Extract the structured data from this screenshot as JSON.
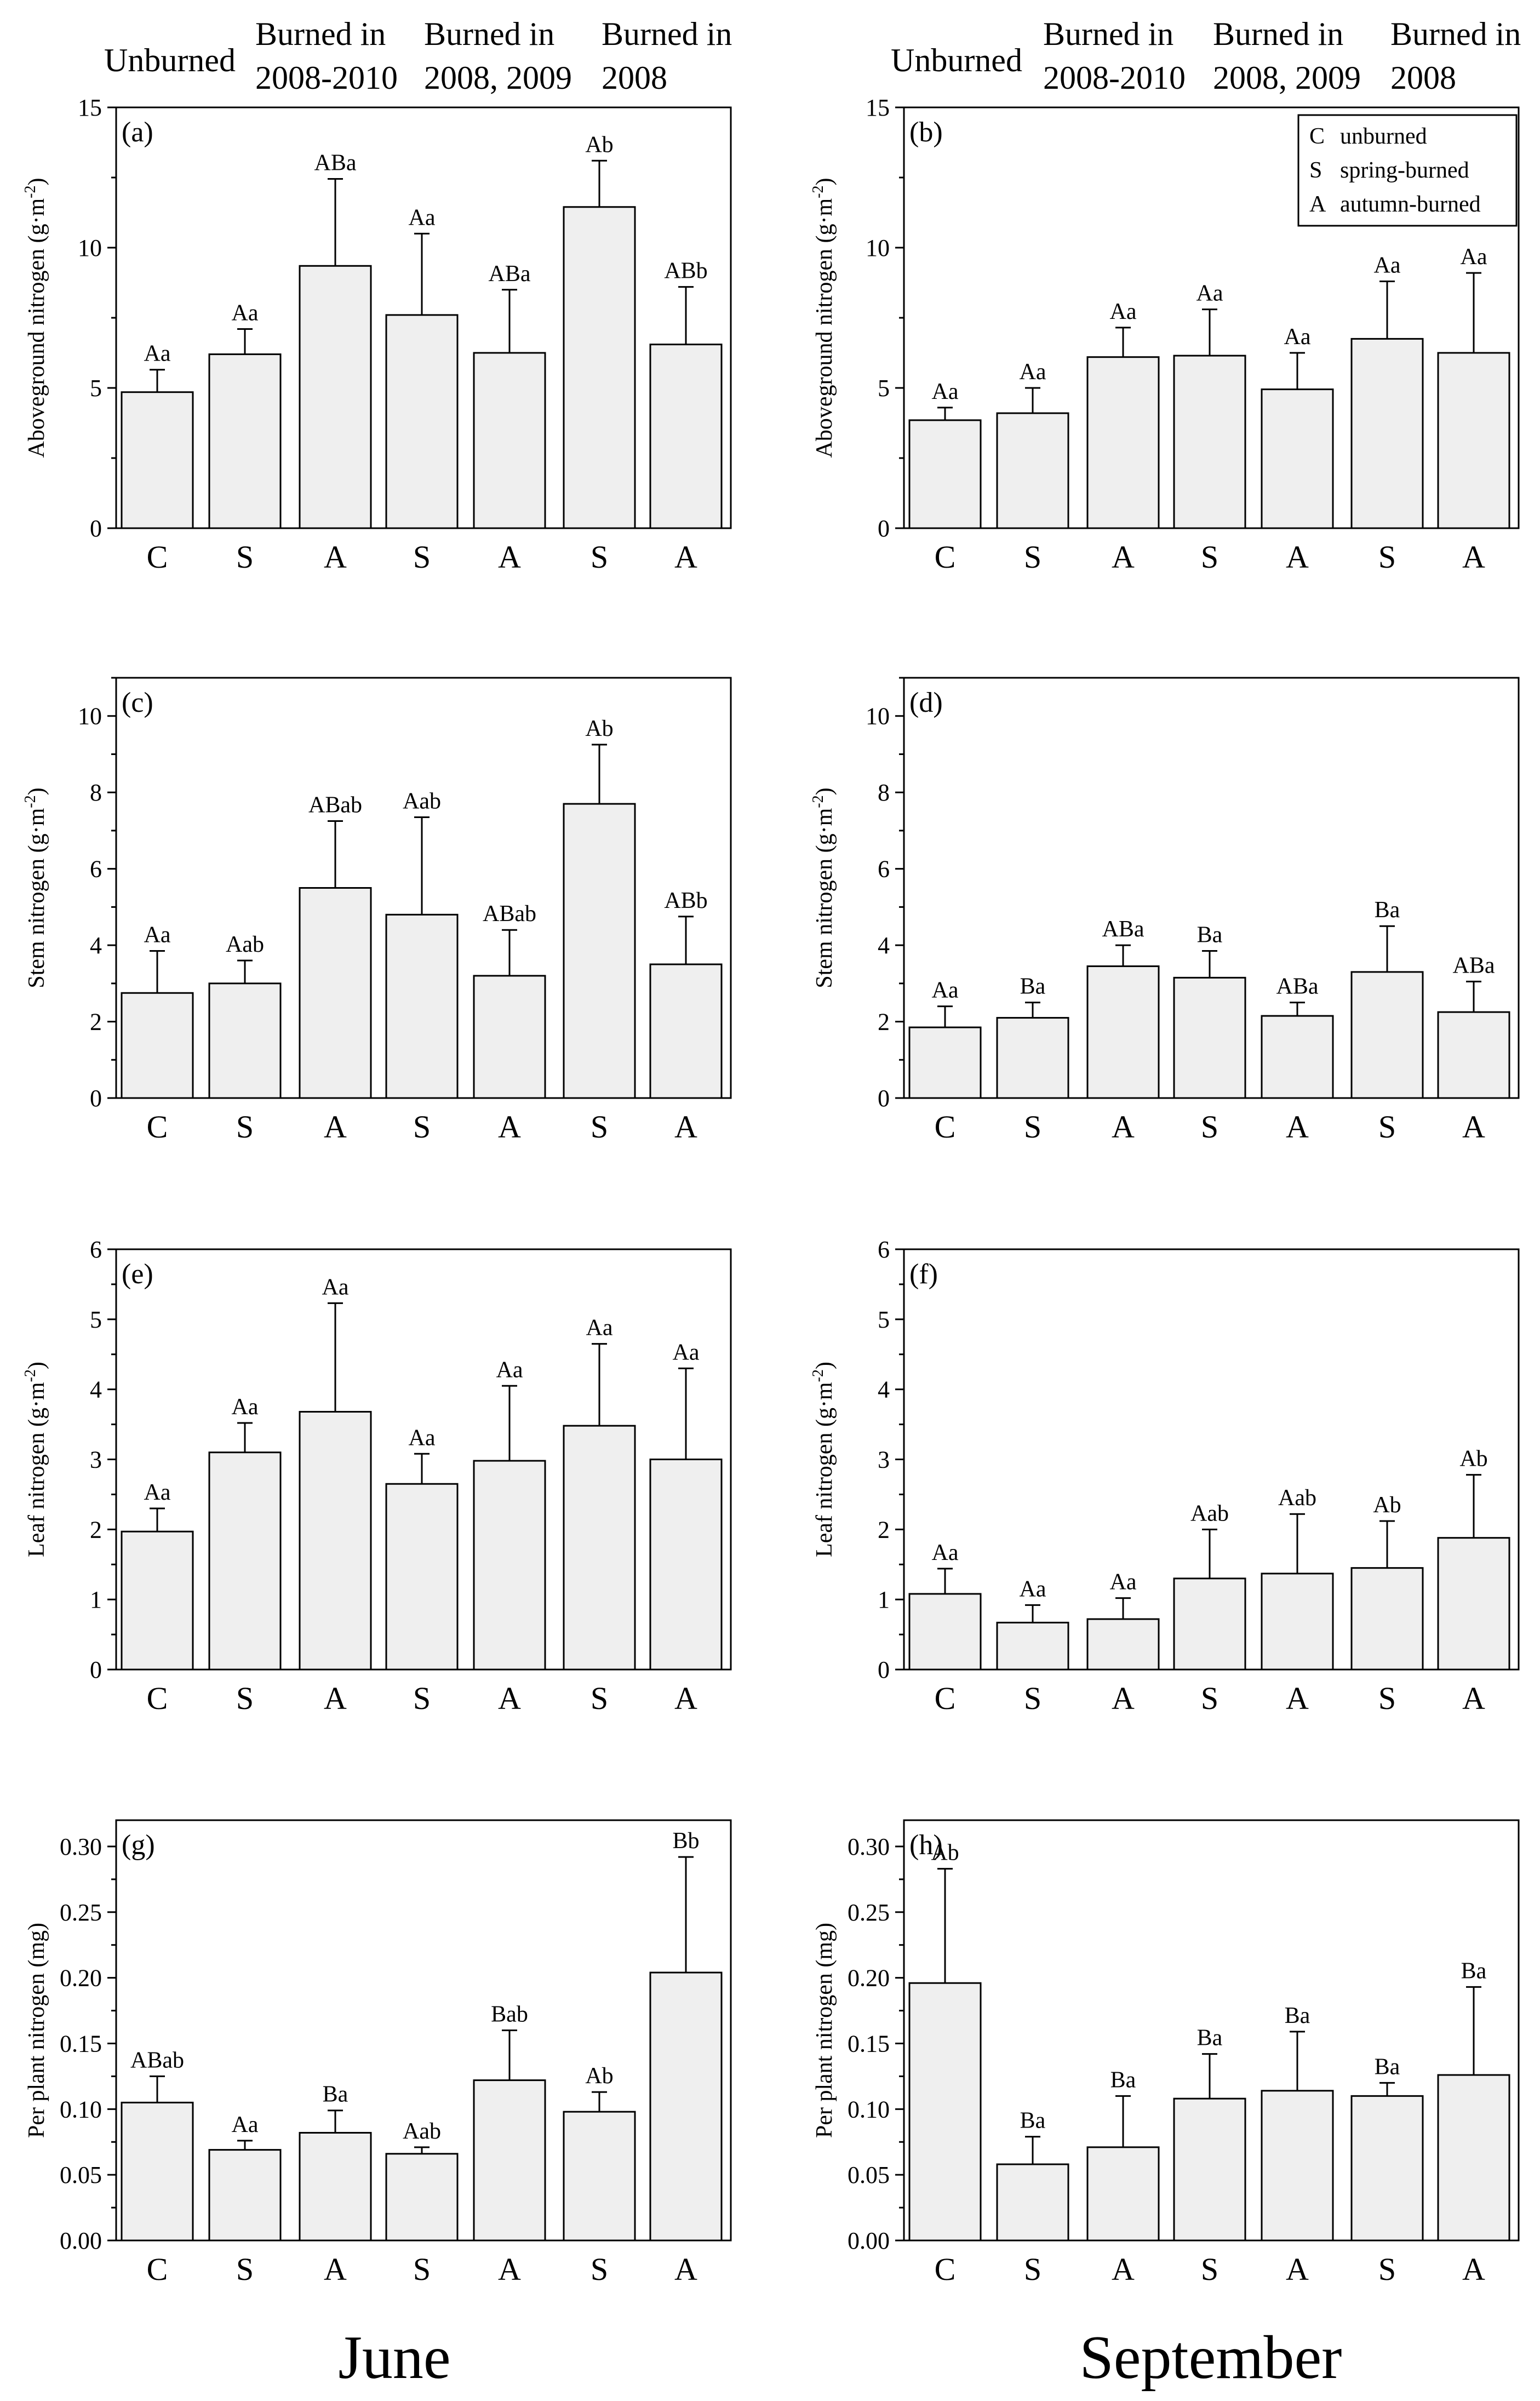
{
  "column_titles": [
    "June",
    "September"
  ],
  "group_headers": {
    "unburned": [
      "Unburned"
    ],
    "g1": [
      "Burned in",
      "2008-2010"
    ],
    "g2": [
      "Burned in",
      "2008, 2009"
    ],
    "g3": [
      "Burned in",
      "2008"
    ]
  },
  "legend": [
    {
      "code": "C",
      "label": "unburned"
    },
    {
      "code": "S",
      "label": "spring-burned"
    },
    {
      "code": "A",
      "label": "autumn-burned"
    }
  ],
  "colors": {
    "bar_fill": "#efefef",
    "stroke": "#000000",
    "background": "#ffffff"
  },
  "chart_data": [
    {
      "type": "bar",
      "panel": "(a)",
      "month": "June",
      "ylabel": "Aboveground nitrogen (g·m-2)",
      "ylim": [
        0,
        15
      ],
      "yticks": [
        0,
        5,
        10,
        15
      ],
      "categories": [
        "C",
        "S",
        "A",
        "S",
        "A",
        "S",
        "A"
      ],
      "values": [
        4.85,
        6.2,
        9.35,
        7.6,
        6.25,
        11.45,
        6.55
      ],
      "errors": [
        0.8,
        0.9,
        3.1,
        2.9,
        2.25,
        1.65,
        2.05
      ],
      "labels": [
        "Aa",
        "Aa",
        "ABa",
        "Aa",
        "ABa",
        "Ab",
        "ABb"
      ]
    },
    {
      "type": "bar",
      "panel": "(b)",
      "month": "September",
      "ylabel": "Aboveground nitrogen (g·m-2)",
      "ylim": [
        0,
        15
      ],
      "yticks": [
        0,
        5,
        10,
        15
      ],
      "categories": [
        "C",
        "S",
        "A",
        "S",
        "A",
        "S",
        "A"
      ],
      "values": [
        3.85,
        4.1,
        6.1,
        6.15,
        4.95,
        6.75,
        6.25
      ],
      "errors": [
        0.45,
        0.9,
        1.05,
        1.65,
        1.3,
        2.05,
        2.85
      ],
      "labels": [
        "Aa",
        "Aa",
        "Aa",
        "Aa",
        "Aa",
        "Aa",
        "Aa"
      ]
    },
    {
      "type": "bar",
      "panel": "(c)",
      "month": "June",
      "ylabel": "Stem nitrogen (g·m-2)",
      "ylim": [
        0,
        11
      ],
      "yticks": [
        0,
        2,
        4,
        6,
        8,
        10
      ],
      "categories": [
        "C",
        "S",
        "A",
        "S",
        "A",
        "S",
        "A"
      ],
      "values": [
        2.75,
        3.0,
        5.5,
        4.8,
        3.2,
        7.7,
        3.5
      ],
      "errors": [
        1.1,
        0.6,
        1.75,
        2.55,
        1.2,
        1.55,
        1.25
      ],
      "labels": [
        "Aa",
        "Aab",
        "ABab",
        "Aab",
        "ABab",
        "Ab",
        "ABb"
      ]
    },
    {
      "type": "bar",
      "panel": "(d)",
      "month": "September",
      "ylabel": "Stem nitrogen (g·m-2)",
      "ylim": [
        0,
        11
      ],
      "yticks": [
        0,
        2,
        4,
        6,
        8,
        10
      ],
      "categories": [
        "C",
        "S",
        "A",
        "S",
        "A",
        "S",
        "A"
      ],
      "values": [
        1.85,
        2.1,
        3.45,
        3.15,
        2.15,
        3.3,
        2.25
      ],
      "errors": [
        0.55,
        0.4,
        0.55,
        0.7,
        0.35,
        1.2,
        0.8
      ],
      "labels": [
        "Aa",
        "Ba",
        "ABa",
        "Ba",
        "ABa",
        "Ba",
        "ABa"
      ]
    },
    {
      "type": "bar",
      "panel": "(e)",
      "month": "June",
      "ylabel": "Leaf nitrogen (g·m-2)",
      "ylim": [
        0,
        6
      ],
      "yticks": [
        0,
        1,
        2,
        3,
        4,
        5,
        6
      ],
      "categories": [
        "C",
        "S",
        "A",
        "S",
        "A",
        "S",
        "A"
      ],
      "values": [
        1.97,
        3.1,
        3.68,
        2.65,
        2.98,
        3.48,
        3.0
      ],
      "errors": [
        0.33,
        0.42,
        1.55,
        0.43,
        1.07,
        1.17,
        1.3
      ],
      "labels": [
        "Aa",
        "Aa",
        "Aa",
        "Aa",
        "Aa",
        "Aa",
        "Aa"
      ]
    },
    {
      "type": "bar",
      "panel": "(f)",
      "month": "September",
      "ylabel": "Leaf nitrogen (g·m-2)",
      "ylim": [
        0,
        6
      ],
      "yticks": [
        0,
        1,
        2,
        3,
        4,
        5,
        6
      ],
      "categories": [
        "C",
        "S",
        "A",
        "S",
        "A",
        "S",
        "A"
      ],
      "values": [
        1.08,
        0.67,
        0.72,
        1.3,
        1.37,
        1.45,
        1.88
      ],
      "errors": [
        0.36,
        0.25,
        0.3,
        0.7,
        0.85,
        0.67,
        0.9
      ],
      "labels": [
        "Aa",
        "Aa",
        "Aa",
        "Aab",
        "Aab",
        "Ab",
        "Ab"
      ]
    },
    {
      "type": "bar",
      "panel": "(g)",
      "month": "June",
      "ylabel": "Per plant nitrogen (mg)",
      "ylim": [
        0,
        0.32
      ],
      "yticks": [
        0.0,
        0.05,
        0.1,
        0.15,
        0.2,
        0.25,
        0.3
      ],
      "categories": [
        "C",
        "S",
        "A",
        "S",
        "A",
        "S",
        "A"
      ],
      "values": [
        0.105,
        0.069,
        0.082,
        0.066,
        0.122,
        0.098,
        0.204
      ],
      "errors": [
        0.02,
        0.007,
        0.017,
        0.005,
        0.038,
        0.015,
        0.088
      ],
      "labels": [
        "ABab",
        "Aa",
        "Ba",
        "Aab",
        "Bab",
        "Ab",
        "Bb"
      ]
    },
    {
      "type": "bar",
      "panel": "(h)",
      "month": "September",
      "ylabel": "Per plant nitrogen (mg)",
      "ylim": [
        0,
        0.32
      ],
      "yticks": [
        0.0,
        0.05,
        0.1,
        0.15,
        0.2,
        0.25,
        0.3
      ],
      "categories": [
        "C",
        "S",
        "A",
        "S",
        "A",
        "S",
        "A"
      ],
      "values": [
        0.196,
        0.058,
        0.071,
        0.108,
        0.114,
        0.11,
        0.126
      ],
      "errors": [
        0.087,
        0.021,
        0.039,
        0.034,
        0.045,
        0.01,
        0.067
      ],
      "labels": [
        "Ab",
        "Ba",
        "Ba",
        "Ba",
        "Ba",
        "Ba",
        "Ba"
      ]
    }
  ]
}
